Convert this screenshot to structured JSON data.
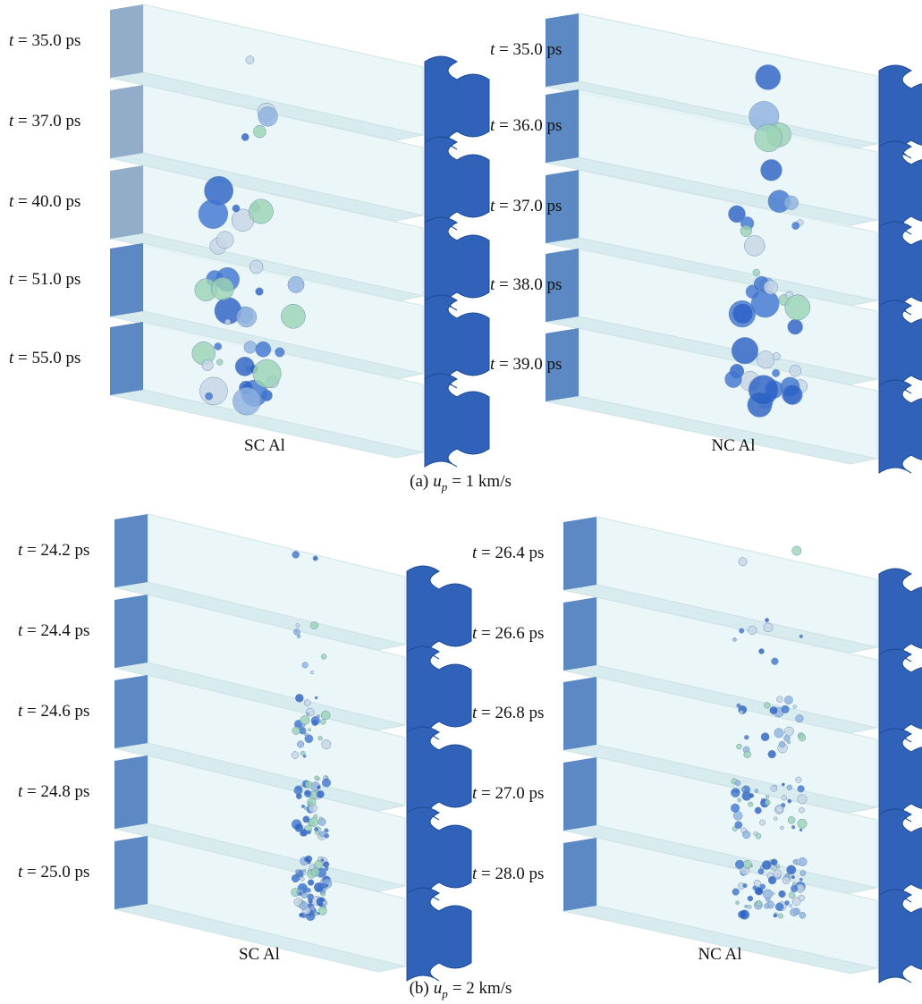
{
  "panel_a": {
    "caption": {
      "label": "(a)",
      "variable": "u",
      "subscript": "p",
      "text": "= 1 km/s"
    },
    "columns": [
      {
        "title": "SC Al",
        "times": [
          "t = 35.0 ps",
          "t = 37.0 ps",
          "t = 40.0 ps",
          "t = 51.0 ps",
          "t = 55.0 ps"
        ]
      },
      {
        "title": "NC Al",
        "times": [
          "t = 35.0 ps",
          "t = 36.0 ps",
          "t = 37.0 ps",
          "t = 38.0 ps",
          "t = 39.0 ps"
        ]
      }
    ]
  },
  "panel_b": {
    "caption": {
      "label": "(b)",
      "variable": "u",
      "subscript": "p",
      "text": "= 2 km/s"
    },
    "columns": [
      {
        "title": "SC Al",
        "times": [
          "t = 24.2 ps",
          "t = 24.4 ps",
          "t = 24.6 ps",
          "t = 24.8 ps",
          "t = 25.0 ps"
        ]
      },
      {
        "title": "NC Al",
        "times": [
          "t = 26.4 ps",
          "t = 26.6 ps",
          "t = 26.8 ps",
          "t = 27.0 ps",
          "t = 28.0 ps"
        ]
      }
    ]
  }
}
